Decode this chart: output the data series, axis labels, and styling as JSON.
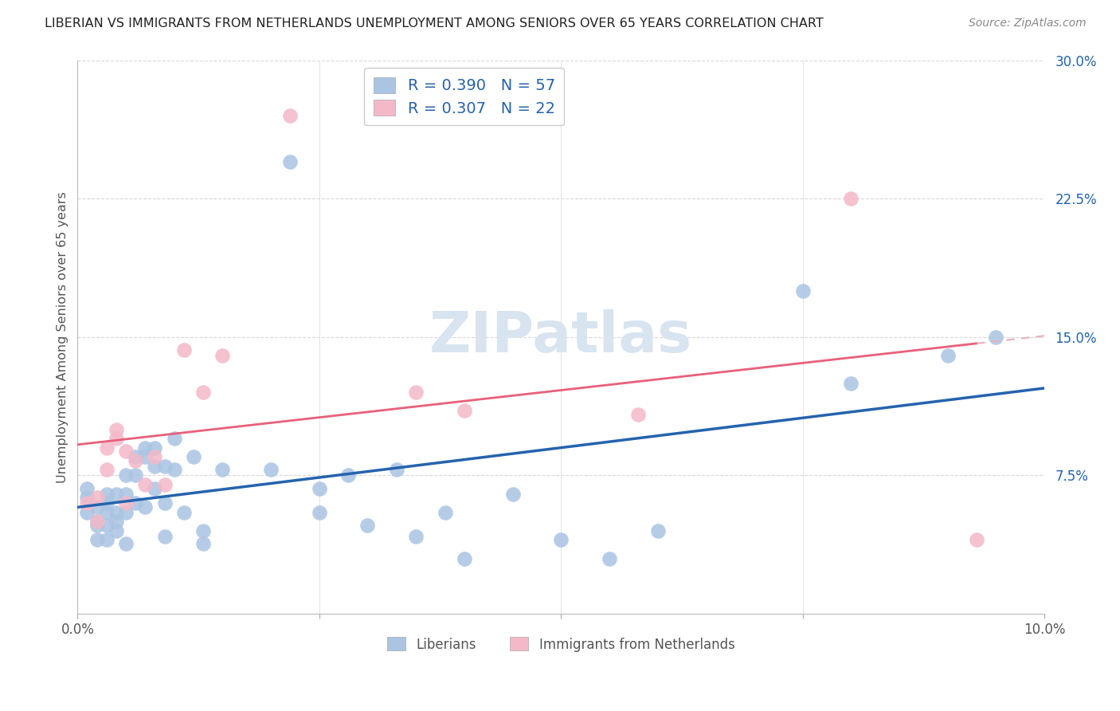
{
  "title": "LIBERIAN VS IMMIGRANTS FROM NETHERLANDS UNEMPLOYMENT AMONG SENIORS OVER 65 YEARS CORRELATION CHART",
  "source": "Source: ZipAtlas.com",
  "ylabel": "Unemployment Among Seniors over 65 years",
  "xlim": [
    0,
    0.1
  ],
  "ylim": [
    0,
    0.3
  ],
  "xticks": [
    0.0,
    0.025,
    0.05,
    0.075,
    0.1
  ],
  "yticks": [
    0.0,
    0.075,
    0.15,
    0.225,
    0.3
  ],
  "liberian": {
    "name": "Liberians",
    "color": "#aac4e2",
    "line_color": "#2563ae",
    "R": 0.39,
    "N": 57,
    "x": [
      0.001,
      0.001,
      0.001,
      0.002,
      0.002,
      0.002,
      0.002,
      0.003,
      0.003,
      0.003,
      0.003,
      0.003,
      0.004,
      0.004,
      0.004,
      0.004,
      0.005,
      0.005,
      0.005,
      0.005,
      0.006,
      0.006,
      0.006,
      0.007,
      0.007,
      0.007,
      0.008,
      0.008,
      0.008,
      0.009,
      0.009,
      0.009,
      0.01,
      0.01,
      0.011,
      0.012,
      0.013,
      0.013,
      0.015,
      0.02,
      0.022,
      0.025,
      0.025,
      0.028,
      0.03,
      0.033,
      0.035,
      0.038,
      0.04,
      0.045,
      0.05,
      0.055,
      0.06,
      0.075,
      0.08,
      0.09,
      0.095
    ],
    "y": [
      0.055,
      0.063,
      0.068,
      0.05,
      0.058,
      0.048,
      0.04,
      0.06,
      0.055,
      0.065,
      0.048,
      0.04,
      0.065,
      0.055,
      0.05,
      0.045,
      0.075,
      0.065,
      0.055,
      0.038,
      0.085,
      0.075,
      0.06,
      0.09,
      0.085,
      0.058,
      0.09,
      0.08,
      0.068,
      0.08,
      0.06,
      0.042,
      0.095,
      0.078,
      0.055,
      0.085,
      0.045,
      0.038,
      0.078,
      0.078,
      0.245,
      0.068,
      0.055,
      0.075,
      0.048,
      0.078,
      0.042,
      0.055,
      0.03,
      0.065,
      0.04,
      0.03,
      0.045,
      0.175,
      0.125,
      0.14,
      0.15
    ]
  },
  "netherlands": {
    "name": "Immigrants from Netherlands",
    "color": "#f4b8c8",
    "line_color": "#e8607a",
    "R": 0.307,
    "N": 22,
    "x": [
      0.001,
      0.002,
      0.002,
      0.003,
      0.003,
      0.004,
      0.004,
      0.005,
      0.005,
      0.006,
      0.007,
      0.008,
      0.009,
      0.011,
      0.013,
      0.015,
      0.022,
      0.035,
      0.04,
      0.058,
      0.08,
      0.093
    ],
    "y": [
      0.06,
      0.063,
      0.05,
      0.09,
      0.078,
      0.095,
      0.1,
      0.088,
      0.06,
      0.083,
      0.07,
      0.085,
      0.07,
      0.143,
      0.12,
      0.14,
      0.27,
      0.12,
      0.11,
      0.108,
      0.225,
      0.04
    ]
  },
  "watermark_text": "ZIPatlas",
  "watermark_color": "#d8e4f0",
  "background_color": "#ffffff",
  "grid_color": "#d8d8d8"
}
